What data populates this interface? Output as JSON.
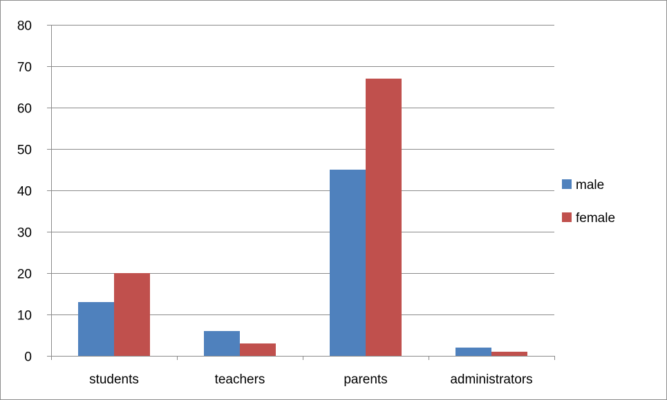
{
  "chart_data": {
    "type": "bar",
    "title": "",
    "xlabel": "",
    "ylabel": "",
    "categories": [
      "students",
      "teachers",
      "parents",
      "administrators"
    ],
    "series": [
      {
        "name": "male",
        "values": [
          13,
          6,
          45,
          2
        ],
        "color": "#4f81bd"
      },
      {
        "name": "female",
        "values": [
          20,
          3,
          67,
          1
        ],
        "color": "#c0504d"
      }
    ],
    "ylim": [
      0,
      80
    ],
    "yticks": [
      0,
      10,
      20,
      30,
      40,
      50,
      60,
      70,
      80
    ],
    "grid": true,
    "legend_position": "right"
  }
}
